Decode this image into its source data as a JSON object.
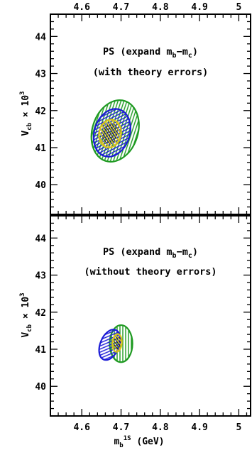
{
  "colors": {
    "green": "#1f9a22",
    "blue": "#1b1bd6",
    "yellow": "#d8c21a",
    "black": "#000000"
  },
  "chart_data": [
    {
      "type": "scatter",
      "panel": "top",
      "title": "",
      "annotation_line1": {
        "pre": "PS (expand m",
        "b": "b",
        "mid": "−m",
        "c": "c",
        "post": ")"
      },
      "annotation_line2": "(with theory errors)",
      "xlabel": {
        "base": "m",
        "sub": "b",
        "sup": "1S",
        "post": " (GeV)"
      },
      "ylabel": {
        "base": "V",
        "sub": "cb",
        "mid": " × 10",
        "sup": "3"
      },
      "x_ticks": [
        "4.6",
        "4.7",
        "4.8",
        "4.9",
        "5"
      ],
      "y_ticks": [
        "40",
        "41",
        "42",
        "43",
        "44"
      ],
      "xlim": [
        4.52,
        5.03
      ],
      "ylim": [
        39.2,
        44.6
      ],
      "top_axis_labels": true,
      "bottom_axis_labels": false,
      "grid": false,
      "series": [
        {
          "color": "green",
          "hatch": "vertical",
          "cx": 4.685,
          "cy": 41.45,
          "rx": 0.058,
          "ry": 0.85,
          "rotation": 18
        },
        {
          "color": "blue",
          "hatch": "diagonal-down",
          "cx": 4.677,
          "cy": 41.4,
          "rx": 0.045,
          "ry": 0.66,
          "rotation": 18
        },
        {
          "color": "yellow",
          "hatch": "diagonal-up",
          "cx": 4.672,
          "cy": 41.38,
          "rx": 0.028,
          "ry": 0.38,
          "rotation": 12
        }
      ]
    },
    {
      "type": "scatter",
      "panel": "bottom",
      "title": "",
      "annotation_line1": {
        "pre": "PS (expand m",
        "b": "b",
        "mid": "−m",
        "c": "c",
        "post": ")"
      },
      "annotation_line2": "(without theory errors)",
      "xlabel": {
        "base": "m",
        "sub": "b",
        "sup": "1S",
        "post": " (GeV)"
      },
      "ylabel": {
        "base": "V",
        "sub": "cb",
        "mid": " × 10",
        "sup": "3"
      },
      "x_ticks": [
        "4.6",
        "4.7",
        "4.8",
        "4.9",
        "5"
      ],
      "y_ticks": [
        "40",
        "41",
        "42",
        "43",
        "44"
      ],
      "xlim": [
        4.52,
        5.03
      ],
      "ylim": [
        39.2,
        44.6
      ],
      "top_axis_labels": false,
      "bottom_axis_labels": true,
      "grid": false,
      "series": [
        {
          "color": "green",
          "hatch": "vertical",
          "cx": 4.7,
          "cy": 41.15,
          "rx": 0.029,
          "ry": 0.5,
          "rotation": 0
        },
        {
          "color": "blue",
          "hatch": "diagonal-down",
          "cx": 4.671,
          "cy": 41.12,
          "rx": 0.024,
          "ry": 0.43,
          "rotation": 22
        },
        {
          "color": "yellow",
          "hatch": "diagonal-up",
          "cx": 4.69,
          "cy": 41.17,
          "rx": 0.012,
          "ry": 0.24,
          "rotation": 5
        }
      ]
    }
  ]
}
